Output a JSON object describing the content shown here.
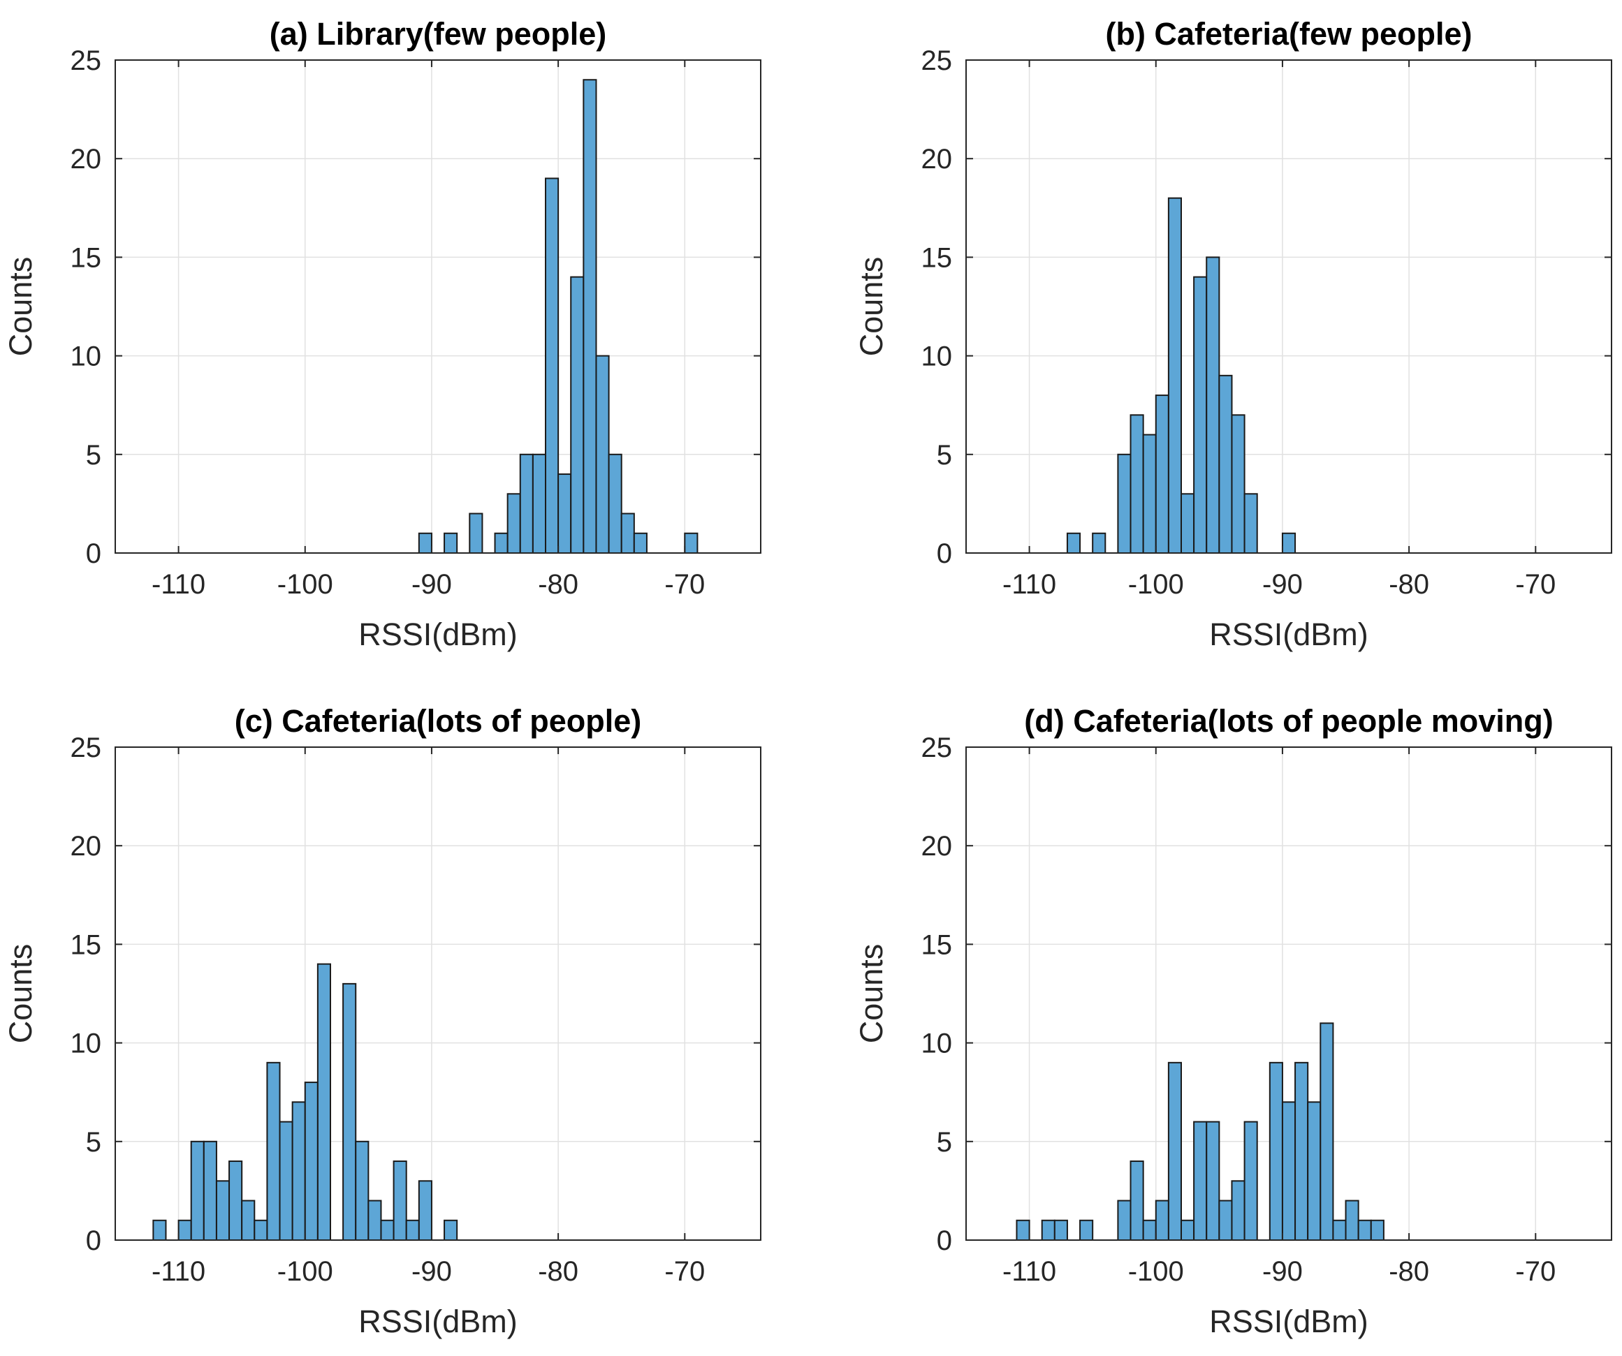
{
  "chart_data": [
    {
      "type": "bar",
      "title": "(a) Library(few people)",
      "xlabel": "RSSI(dBm)",
      "ylabel": "Counts",
      "xlim": [
        -115,
        -64
      ],
      "ylim": [
        0,
        25
      ],
      "xticks": [
        -110,
        -100,
        -90,
        -80,
        -70
      ],
      "yticks": [
        0,
        5,
        10,
        15,
        20,
        25
      ],
      "grid": true,
      "bin_width": 1,
      "bins": [
        {
          "start": -91,
          "count": 1
        },
        {
          "start": -89,
          "count": 1
        },
        {
          "start": -87,
          "count": 2
        },
        {
          "start": -85,
          "count": 1
        },
        {
          "start": -84,
          "count": 3
        },
        {
          "start": -83,
          "count": 5
        },
        {
          "start": -82,
          "count": 5
        },
        {
          "start": -81,
          "count": 19
        },
        {
          "start": -80,
          "count": 4
        },
        {
          "start": -79,
          "count": 14
        },
        {
          "start": -78,
          "count": 24
        },
        {
          "start": -77,
          "count": 10
        },
        {
          "start": -76,
          "count": 5
        },
        {
          "start": -75,
          "count": 2
        },
        {
          "start": -74,
          "count": 1
        },
        {
          "start": -70,
          "count": 1
        }
      ]
    },
    {
      "type": "bar",
      "title": "(b) Cafeteria(few people)",
      "xlabel": "RSSI(dBm)",
      "ylabel": "Counts",
      "xlim": [
        -115,
        -64
      ],
      "ylim": [
        0,
        25
      ],
      "xticks": [
        -110,
        -100,
        -90,
        -80,
        -70
      ],
      "yticks": [
        0,
        5,
        10,
        15,
        20,
        25
      ],
      "grid": true,
      "bin_width": 1,
      "bins": [
        {
          "start": -107,
          "count": 1
        },
        {
          "start": -105,
          "count": 1
        },
        {
          "start": -103,
          "count": 5
        },
        {
          "start": -102,
          "count": 7
        },
        {
          "start": -101,
          "count": 6
        },
        {
          "start": -100,
          "count": 8
        },
        {
          "start": -99,
          "count": 18
        },
        {
          "start": -98,
          "count": 3
        },
        {
          "start": -97,
          "count": 14
        },
        {
          "start": -96,
          "count": 15
        },
        {
          "start": -95,
          "count": 9
        },
        {
          "start": -94,
          "count": 7
        },
        {
          "start": -93,
          "count": 3
        },
        {
          "start": -90,
          "count": 1
        }
      ]
    },
    {
      "type": "bar",
      "title": "(c) Cafeteria(lots of people)",
      "xlabel": "RSSI(dBm)",
      "ylabel": "Counts",
      "xlim": [
        -115,
        -64
      ],
      "ylim": [
        0,
        25
      ],
      "xticks": [
        -110,
        -100,
        -90,
        -80,
        -70
      ],
      "yticks": [
        0,
        5,
        10,
        15,
        20,
        25
      ],
      "grid": true,
      "bin_width": 1,
      "bins": [
        {
          "start": -112,
          "count": 1
        },
        {
          "start": -110,
          "count": 1
        },
        {
          "start": -109,
          "count": 5
        },
        {
          "start": -108,
          "count": 5
        },
        {
          "start": -107,
          "count": 3
        },
        {
          "start": -106,
          "count": 4
        },
        {
          "start": -105,
          "count": 2
        },
        {
          "start": -104,
          "count": 1
        },
        {
          "start": -103,
          "count": 9
        },
        {
          "start": -102,
          "count": 6
        },
        {
          "start": -101,
          "count": 7
        },
        {
          "start": -100,
          "count": 8
        },
        {
          "start": -99,
          "count": 14
        },
        {
          "start": -98,
          "count": 0
        },
        {
          "start": -97,
          "count": 13
        },
        {
          "start": -96,
          "count": 5
        },
        {
          "start": -95,
          "count": 2
        },
        {
          "start": -94,
          "count": 1
        },
        {
          "start": -93,
          "count": 4
        },
        {
          "start": -92,
          "count": 1
        },
        {
          "start": -91,
          "count": 3
        },
        {
          "start": -89,
          "count": 1
        }
      ]
    },
    {
      "type": "bar",
      "title": "(d) Cafeteria(lots of people moving)",
      "xlabel": "RSSI(dBm)",
      "ylabel": "Counts",
      "xlim": [
        -115,
        -64
      ],
      "ylim": [
        0,
        25
      ],
      "xticks": [
        -110,
        -100,
        -90,
        -80,
        -70
      ],
      "yticks": [
        0,
        5,
        10,
        15,
        20,
        25
      ],
      "grid": true,
      "bin_width": 1,
      "bins": [
        {
          "start": -111,
          "count": 1
        },
        {
          "start": -109,
          "count": 1
        },
        {
          "start": -108,
          "count": 1
        },
        {
          "start": -106,
          "count": 1
        },
        {
          "start": -103,
          "count": 2
        },
        {
          "start": -102,
          "count": 4
        },
        {
          "start": -101,
          "count": 1
        },
        {
          "start": -100,
          "count": 2
        },
        {
          "start": -99,
          "count": 9
        },
        {
          "start": -98,
          "count": 1
        },
        {
          "start": -97,
          "count": 6
        },
        {
          "start": -96,
          "count": 6
        },
        {
          "start": -95,
          "count": 2
        },
        {
          "start": -94,
          "count": 3
        },
        {
          "start": -93,
          "count": 6
        },
        {
          "start": -92,
          "count": 0
        },
        {
          "start": -91,
          "count": 9
        },
        {
          "start": -90,
          "count": 7
        },
        {
          "start": -89,
          "count": 9
        },
        {
          "start": -88,
          "count": 7
        },
        {
          "start": -87,
          "count": 11
        },
        {
          "start": -86,
          "count": 1
        },
        {
          "start": -85,
          "count": 2
        },
        {
          "start": -84,
          "count": 1
        },
        {
          "start": -83,
          "count": 1
        }
      ]
    }
  ],
  "colors": {
    "bar_fill": "#5DA6D6",
    "bar_edge": "#1A1A1A",
    "grid": "#E1E1E1",
    "axis": "#262626"
  }
}
